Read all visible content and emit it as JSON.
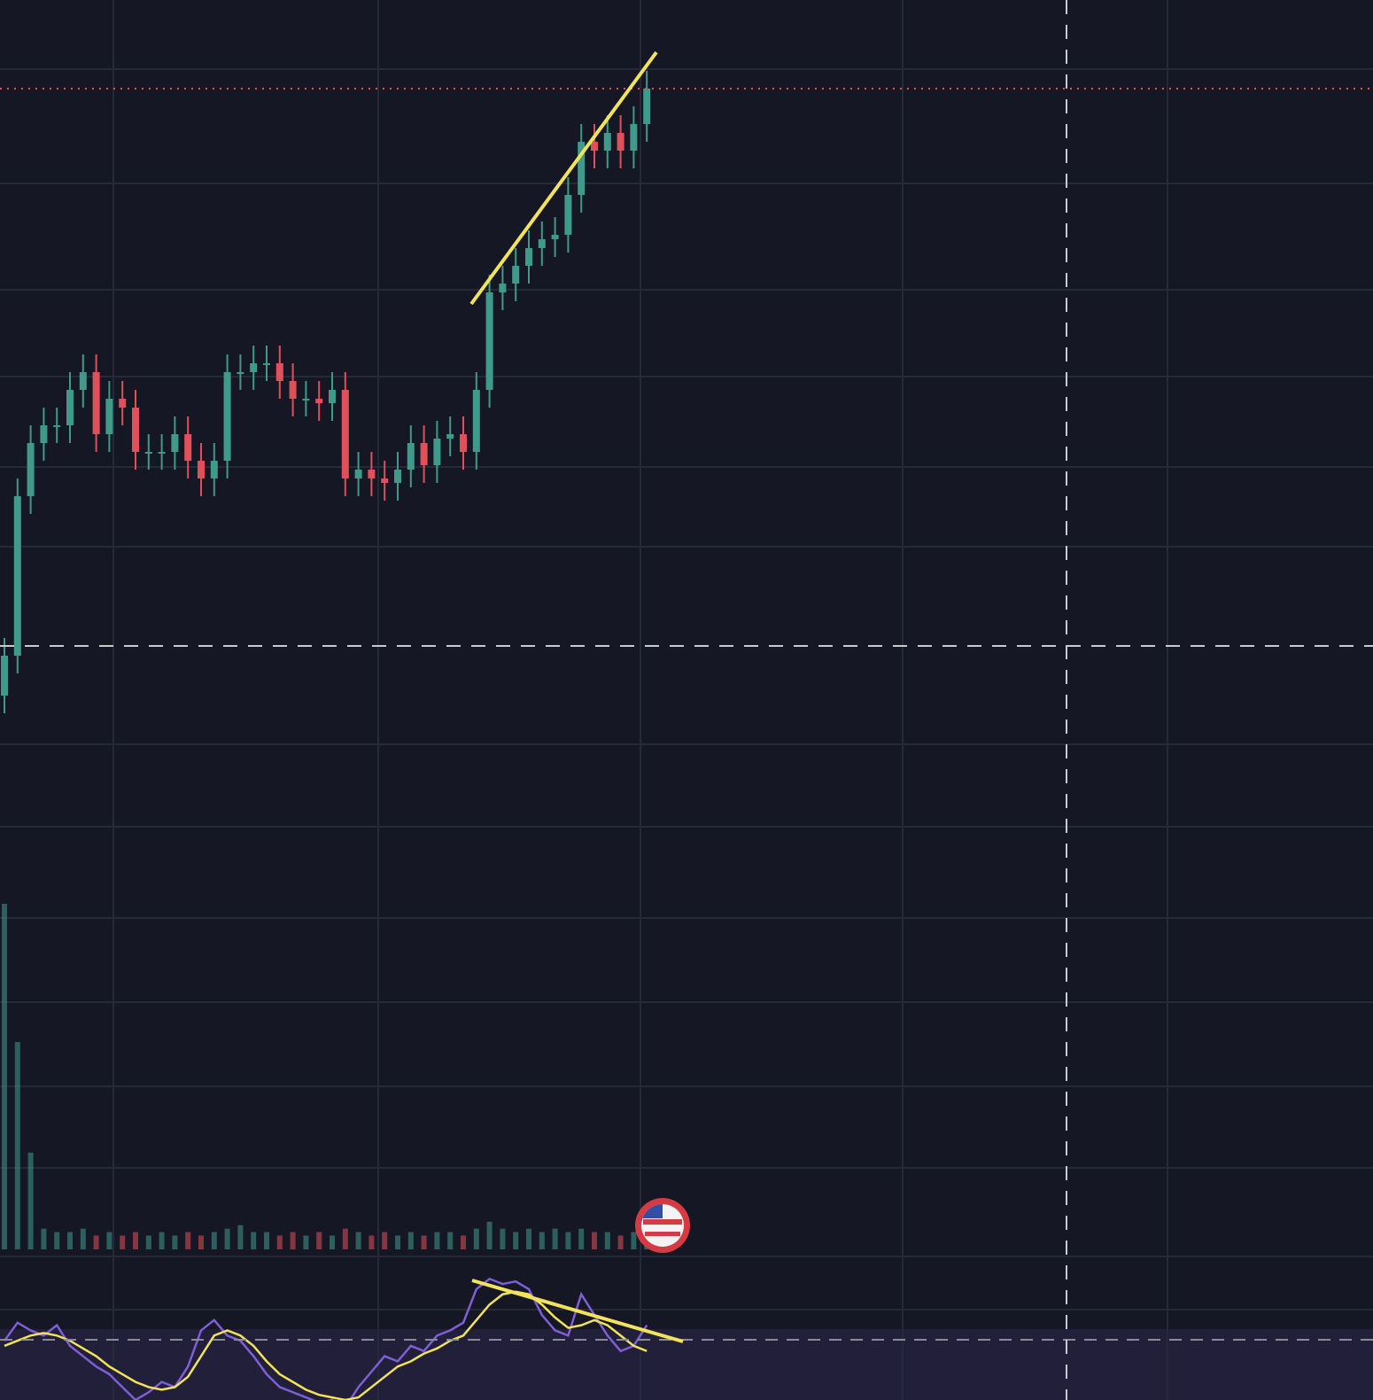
{
  "chart_data": {
    "type": "candlestick",
    "ylim": [
      0,
      140.5
    ],
    "up_color": "#3f9a8c",
    "down_color": "#e0505a",
    "last_price_color": "#e0505a",
    "open": [
      62,
      66.5,
      84.5,
      90.5,
      92.5,
      92.5,
      96.5,
      98.5,
      91.5,
      95.5,
      94.5,
      89.5,
      89.5,
      89.5,
      91.5,
      88.5,
      86.5,
      88.5,
      98.5,
      98.5,
      99.5,
      99.5,
      97.5,
      95.5,
      95.5,
      95,
      96.5,
      86.5,
      87.5,
      86.5,
      86,
      87.5,
      90.5,
      88,
      91,
      91.5,
      89.5,
      96.5,
      107.5,
      108.5,
      110.5,
      112.5,
      113.5,
      114,
      118.5,
      124.5,
      123.5,
      125.5,
      123.5,
      126.5
    ],
    "high": [
      68.5,
      86.5,
      92.5,
      94.5,
      94.5,
      98.5,
      100.5,
      100.5,
      97.5,
      97.5,
      96.5,
      91.5,
      91.5,
      93.5,
      93.5,
      90.5,
      90.5,
      100.5,
      100.5,
      101.5,
      101.5,
      101.5,
      99.5,
      97.5,
      97.5,
      98.5,
      98.5,
      89.5,
      89.5,
      88.5,
      89.5,
      92.5,
      92.5,
      93,
      93.5,
      93.5,
      98.5,
      109.5,
      110.5,
      112.5,
      114.5,
      115.5,
      116,
      120.5,
      126.5,
      126.5,
      127.5,
      127.5,
      128.5,
      132.5
    ],
    "low": [
      60,
      64.5,
      82.5,
      88.5,
      90.5,
      90.5,
      94.5,
      89.5,
      89.5,
      92.5,
      87.5,
      87.5,
      87.5,
      87.5,
      86.5,
      84.5,
      84.5,
      86.5,
      96.5,
      96.5,
      97.5,
      95.5,
      93.5,
      93.5,
      93,
      93,
      84.5,
      84.5,
      84.5,
      84,
      84,
      85.5,
      86,
      86,
      89,
      87.5,
      87.5,
      94.5,
      105.5,
      106.5,
      108.5,
      110.5,
      111.5,
      112,
      116.5,
      121.5,
      121.5,
      121.5,
      121.5,
      124.5
    ],
    "close": [
      66.5,
      84.5,
      90.5,
      92.5,
      92.5,
      96.5,
      98.5,
      91.5,
      95.5,
      94.5,
      89.5,
      89.5,
      89.5,
      91.5,
      88.5,
      86.5,
      88.5,
      98.5,
      98.5,
      99.5,
      99.5,
      97.5,
      95.5,
      95.5,
      95,
      96.5,
      86.5,
      87.5,
      86.5,
      86,
      87.5,
      90.5,
      88,
      91,
      91.5,
      89.5,
      96.5,
      107.5,
      108.5,
      110.5,
      112.5,
      113.5,
      114,
      118.5,
      124.5,
      123.5,
      125.5,
      123.5,
      126.5,
      130.5
    ],
    "volume": {
      "ylim": [
        0,
        100
      ],
      "values": [
        100,
        60,
        28,
        6,
        5,
        5,
        6,
        4,
        5,
        4,
        5,
        4,
        5,
        4,
        5,
        4,
        5,
        6,
        7,
        5,
        5,
        4,
        5,
        4,
        5,
        4,
        6,
        5,
        4,
        5,
        4,
        5,
        4,
        5,
        5,
        4,
        6,
        8,
        6,
        5,
        6,
        5,
        6,
        5,
        6,
        5,
        5,
        4,
        5,
        6
      ]
    },
    "rsi": {
      "ylim": [
        45,
        100
      ],
      "level": 70,
      "series": [
        {
          "color": "#7e5fd6",
          "values": [
            68,
            75,
            72,
            70,
            74,
            66,
            62,
            58,
            55,
            50,
            45,
            48,
            52,
            50,
            58,
            72,
            76,
            70,
            68,
            62,
            55,
            50,
            48,
            46,
            44,
            45,
            42,
            50,
            56,
            62,
            60,
            66,
            64,
            70,
            72,
            75,
            88,
            92,
            90,
            91,
            88,
            78,
            72,
            70,
            86,
            78,
            70,
            64,
            66,
            74
          ]
        },
        {
          "color": "#f2e35b",
          "values": [
            66,
            68,
            70,
            71,
            70,
            68,
            65,
            62,
            58,
            55,
            52,
            50,
            49,
            50,
            54,
            62,
            70,
            72,
            70,
            66,
            60,
            55,
            52,
            49,
            47,
            46,
            45,
            46,
            50,
            54,
            58,
            60,
            63,
            65,
            68,
            70,
            76,
            82,
            86,
            87,
            86,
            82,
            77,
            73,
            74,
            76,
            74,
            70,
            66,
            64
          ]
        }
      ]
    }
  }
}
